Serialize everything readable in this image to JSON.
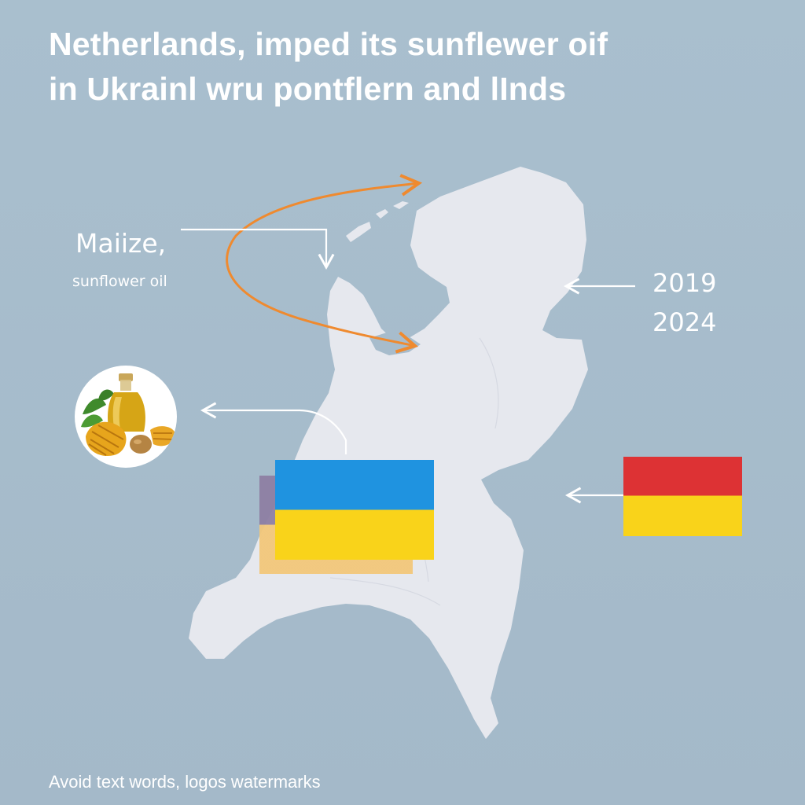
{
  "title": {
    "line1": "Netherlands, imped its sunflewer oif",
    "line2": "in Ukrainl wru pontflern and lInds"
  },
  "labels": {
    "maize": "Maiize,",
    "sunflower": "sunflower oil"
  },
  "years": [
    "2019",
    "2024"
  ],
  "footer": "Avoid text words, logos watermarks",
  "colors": {
    "background": "#a7bccc",
    "land": "#e6e8ee",
    "route_arrow": "#ef8a2f",
    "ukraine_blue": "#1f93e0",
    "ukraine_yellow": "#f9d31a",
    "germany_red": "#dd3234",
    "germany_yellow": "#f9d31a"
  },
  "icons": [
    "sunflower-oil-and-maize-icon"
  ]
}
